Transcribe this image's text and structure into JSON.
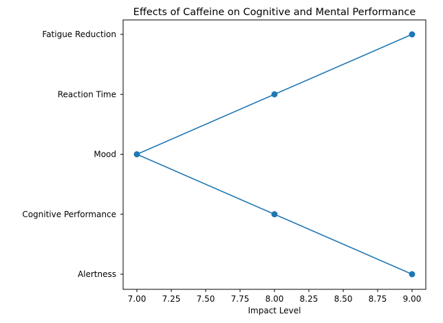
{
  "chart_data": {
    "type": "line",
    "title": "Effects of Caffeine on Cognitive and Mental Performance",
    "xlabel": "Impact Level",
    "ylabel": "",
    "categories": [
      "Alertness",
      "Cognitive Performance",
      "Mood",
      "Reaction Time",
      "Fatigue Reduction"
    ],
    "series": [
      {
        "values": [
          9,
          8,
          7,
          8,
          9
        ],
        "color": "#1f77b4",
        "marker": "circle"
      }
    ],
    "xlim": [
      6.9,
      9.1
    ],
    "xticks": [
      "7.00",
      "7.25",
      "7.50",
      "7.75",
      "8.00",
      "8.25",
      "8.50",
      "8.75",
      "9.00"
    ],
    "grid": false,
    "legend": "none"
  }
}
